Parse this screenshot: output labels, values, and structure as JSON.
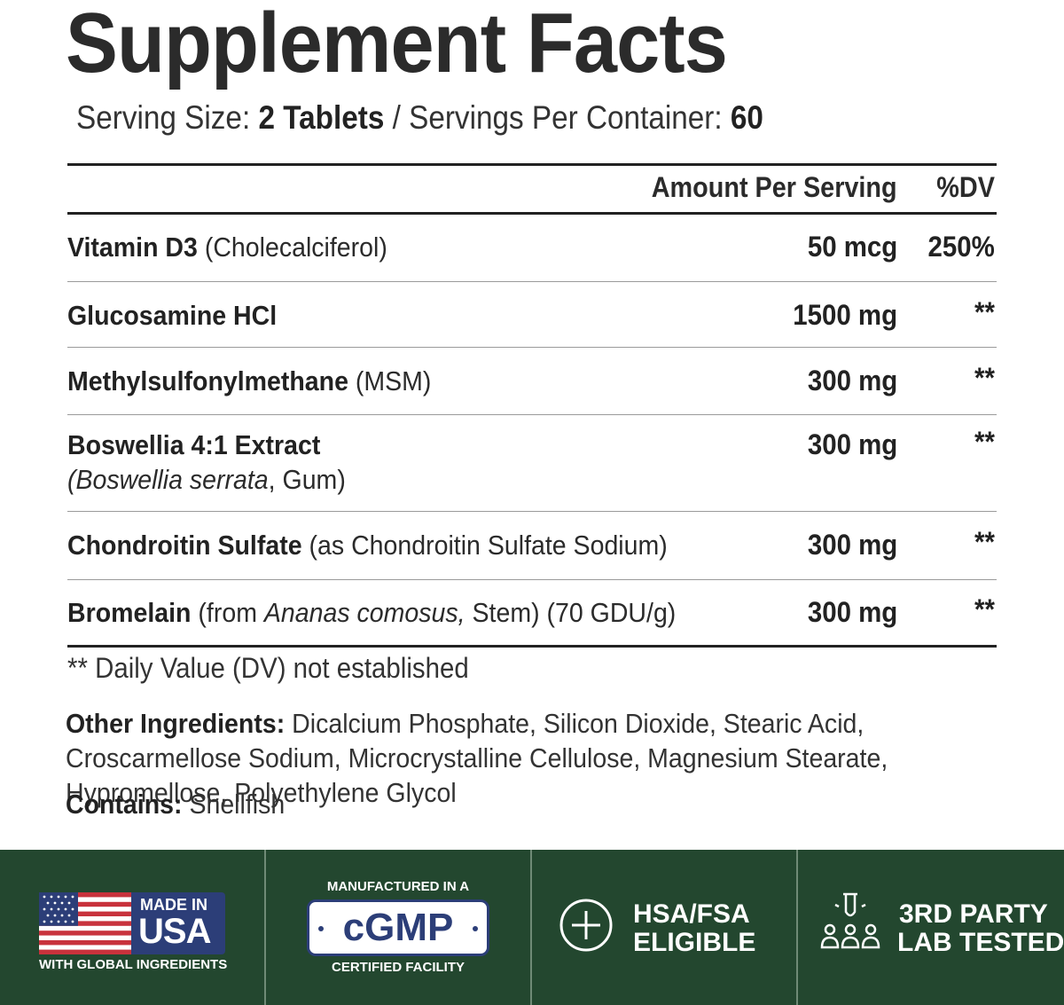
{
  "title": "Supplement Facts",
  "serving": {
    "size_label": "Serving Size:",
    "size_value": "2 Tablets",
    "separator": "/",
    "per_container_label": "Servings Per Container:",
    "per_container_value": "60"
  },
  "table": {
    "header_amount": "Amount Per Serving",
    "header_dv": "%DV",
    "rows": [
      {
        "name": "Vitamin D3",
        "detail": "(Cholecalciferol)",
        "amount": "50 mcg",
        "dv": "250%"
      },
      {
        "name": "Glucosamine HCl",
        "detail": "",
        "amount": "1500 mg",
        "dv": "**"
      },
      {
        "name": "Methylsulfonylmethane",
        "detail": "(MSM)",
        "amount": "300 mg",
        "dv": "**"
      },
      {
        "name": "Boswellia 4:1 Extract",
        "detail_italic": "(Boswellia serrata",
        "detail_rest": ", Gum)",
        "amount": "300 mg",
        "dv": "**"
      },
      {
        "name": "Chondroitin Sulfate",
        "detail": "(as Chondroitin Sulfate Sodium)",
        "amount": "300 mg",
        "dv": "**"
      },
      {
        "name": "Bromelain",
        "detail_pre": "(from ",
        "detail_italic": "Ananas comosus,",
        "detail_rest": " Stem) (70 GDU/g)",
        "amount": "300 mg",
        "dv": "**"
      }
    ]
  },
  "footnote": "** Daily Value (DV) not established",
  "other_ingredients": {
    "label": "Other Ingredients:",
    "text": "Dicalcium Phosphate, Silicon Dioxide, Stearic Acid, Croscarmellose Sodium, Microcrystalline Cellulose, Magnesium Stearate, Hypromellose, Polyethylene Glycol"
  },
  "contains": {
    "label": "Contains:",
    "text": "Shellfish"
  },
  "badges": {
    "usa": {
      "line1": "MADE IN",
      "line2": "USA",
      "line3": "WITH GLOBAL INGREDIENTS"
    },
    "cgmp": {
      "top": "MANUFACTURED IN A",
      "main": "cGMP",
      "bottom": "CERTIFIED FACILITY"
    },
    "hsa": {
      "line1": "HSA/FSA",
      "line2": "ELIGIBLE"
    },
    "lab": {
      "line1": "3RD PARTY",
      "line2": "LAB TESTED"
    }
  },
  "colors": {
    "footer_bg": "#23472f",
    "flag_red": "#c8323c",
    "flag_blue": "#2c3e78",
    "text_dark": "#2b2b2b"
  },
  "icons": [
    "us-flag-icon",
    "plus-circle-icon",
    "lab-people-icon"
  ]
}
